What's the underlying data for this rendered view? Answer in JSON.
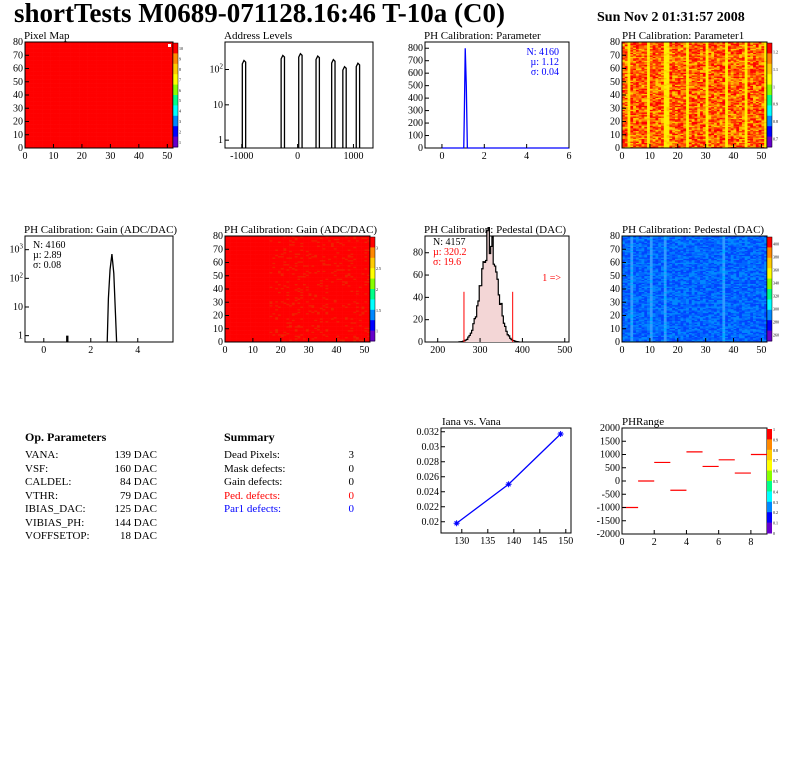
{
  "header": {
    "title": "shortTests M0689-071128.16:46 T-10a (C0)",
    "date": "Sun Nov  2 01:31:57 2008"
  },
  "colors": {
    "hist_black": "#000000",
    "hist_blue": "#0000ff",
    "map_red": "#ff0000",
    "text_red": "#ff0000",
    "text_blue": "#0000ff"
  },
  "parameters": {
    "title": "Op. Parameters",
    "items": [
      {
        "name": "VANA:",
        "value": "139 DAC"
      },
      {
        "name": "VSF:",
        "value": "160 DAC"
      },
      {
        "name": "CALDEL:",
        "value": "84 DAC"
      },
      {
        "name": "VTHR:",
        "value": "79 DAC"
      },
      {
        "name": "IBIAS_DAC:",
        "value": "125 DAC"
      },
      {
        "name": "VIBIAS_PH:",
        "value": "144 DAC"
      },
      {
        "name": "VOFFSETOP:",
        "value": "18 DAC"
      }
    ]
  },
  "summary": {
    "title": "Summary",
    "items": [
      {
        "name": "Dead Pixels:",
        "value": "3",
        "color": "#000000"
      },
      {
        "name": "Mask defects:",
        "value": "0",
        "color": "#000000"
      },
      {
        "name": "Gain defects:",
        "value": "0",
        "color": "#000000"
      },
      {
        "name": "Ped. defects:",
        "value": "0",
        "color": "#ff0000"
      },
      {
        "name": "Par1 defects:",
        "value": "0",
        "color": "#0000ff"
      }
    ]
  },
  "chart_data": [
    {
      "id": "pixel-map",
      "type": "heatmap",
      "title": "Pixel Map",
      "xlim": [
        0,
        52
      ],
      "ylim": [
        0,
        80
      ],
      "xticks": [
        "0",
        "10",
        "20",
        "30",
        "40",
        "50"
      ],
      "yticks": [
        "0",
        "10",
        "20",
        "30",
        "40",
        "50",
        "60",
        "70",
        "80"
      ],
      "zticks": [
        "1",
        "2",
        "3",
        "4",
        "5",
        "6",
        "7",
        "8",
        "9",
        "10"
      ],
      "fill": "uniform red (value 10)"
    },
    {
      "id": "address-levels",
      "type": "bar",
      "title": "Address Levels",
      "log_y": true,
      "xlim": [
        -1300,
        1350
      ],
      "xticks": [
        "-1000",
        "0",
        "1000"
      ],
      "yticks": [
        "1",
        "10",
        "10^2"
      ],
      "peaks": [
        {
          "x": -960,
          "y": 180
        },
        {
          "x": -265,
          "y": 250
        },
        {
          "x": 50,
          "y": 280
        },
        {
          "x": 360,
          "y": 240
        },
        {
          "x": 640,
          "y": 190
        },
        {
          "x": 840,
          "y": 120
        },
        {
          "x": 1080,
          "y": 150
        }
      ]
    },
    {
      "id": "ph-cal-parameter",
      "type": "bar",
      "title": "PH Calibration: Parameter",
      "xlim": [
        -0.8,
        6
      ],
      "ylim": [
        0,
        850
      ],
      "xticks": [
        "0",
        "2",
        "4",
        "6"
      ],
      "yticks": [
        "0",
        "100",
        "200",
        "300",
        "400",
        "500",
        "600",
        "700",
        "800"
      ],
      "stats": [
        "N: 4160",
        "µ: 1.12",
        "σ: 0.04"
      ],
      "peak": {
        "x": 1.12,
        "y": 800
      }
    },
    {
      "id": "ph-cal-parameter1",
      "type": "heatmap",
      "title": "PH Calibration: Parameter1",
      "xlim": [
        0,
        52
      ],
      "ylim": [
        0,
        80
      ],
      "xticks": [
        "0",
        "10",
        "20",
        "30",
        "40",
        "50"
      ],
      "yticks": [
        "0",
        "10",
        "20",
        "30",
        "40",
        "50",
        "60",
        "70",
        "80"
      ],
      "zticks": [
        "0.7",
        "0.8",
        "0.9",
        "1",
        "1.1",
        "1.2"
      ]
    },
    {
      "id": "ph-cal-gain",
      "type": "bar",
      "title": "PH Calibration: Gain (ADC/DAC)",
      "log_y": true,
      "xlim": [
        -0.8,
        5.5
      ],
      "xticks": [
        "0",
        "2",
        "4"
      ],
      "yticks": [
        "1",
        "10",
        "10^2",
        "10^3"
      ],
      "stats": [
        "N: 4160",
        "µ: 2.89",
        "σ: 0.08"
      ],
      "peak": {
        "x": 2.9,
        "y": 700
      }
    },
    {
      "id": "ph-cal-gain-map",
      "type": "heatmap",
      "title": "PH Calibration: Gain (ADC/DAC)",
      "xlim": [
        0,
        52
      ],
      "ylim": [
        0,
        80
      ],
      "xticks": [
        "0",
        "10",
        "20",
        "30",
        "40",
        "50"
      ],
      "yticks": [
        "0",
        "10",
        "20",
        "30",
        "40",
        "50",
        "60",
        "70",
        "80"
      ],
      "zticks": [
        "1",
        "1.5",
        "2",
        "2.5",
        "3"
      ]
    },
    {
      "id": "ph-cal-pedestal",
      "type": "bar",
      "title": "PH Calibration: Pedestal (DAC)",
      "xlim": [
        170,
        510
      ],
      "ylim": [
        0,
        95
      ],
      "xticks": [
        "200",
        "300",
        "400",
        "500"
      ],
      "yticks": [
        "0",
        "20",
        "40",
        "60",
        "80"
      ],
      "stats": [
        "N: 4157",
        "µ: 320.2",
        "σ: 19.6"
      ],
      "overflow_label": "1 =>",
      "peak": {
        "x": 320,
        "y": 90
      }
    },
    {
      "id": "ph-cal-pedestal-map",
      "type": "heatmap",
      "title": "PH Calibration: Pedestal (DAC)",
      "xlim": [
        0,
        52
      ],
      "ylim": [
        0,
        80
      ],
      "xticks": [
        "0",
        "10",
        "20",
        "30",
        "40",
        "50"
      ],
      "yticks": [
        "0",
        "10",
        "20",
        "30",
        "40",
        "50",
        "60",
        "70",
        "80"
      ],
      "zticks": [
        "260",
        "280",
        "300",
        "320",
        "340",
        "360",
        "380",
        "400"
      ]
    },
    {
      "id": "iana-vs-vana",
      "type": "line",
      "title": "Iana vs. Vana",
      "xlim": [
        126,
        151
      ],
      "ylim": [
        0.0185,
        0.0325
      ],
      "xticks": [
        "130",
        "135",
        "140",
        "145",
        "150"
      ],
      "yticks": [
        "0.02",
        "0.022",
        "0.024",
        "0.026",
        "0.028",
        "0.03",
        "0.032"
      ],
      "x": [
        129,
        139,
        149
      ],
      "y": [
        0.0198,
        0.025,
        0.0317
      ]
    },
    {
      "id": "ph-range",
      "type": "scatter",
      "title": "PHRange",
      "xlim": [
        0,
        9
      ],
      "ylim": [
        -2000,
        2000
      ],
      "xticks": [
        "0",
        "2",
        "4",
        "6",
        "8"
      ],
      "yticks": [
        "-2000",
        "-1500",
        "-1000",
        "-500",
        "0",
        "500",
        "1000",
        "1500",
        "2000"
      ],
      "zticks": [
        "0",
        "0.1",
        "0.2",
        "0.3",
        "0.4",
        "0.5",
        "0.6",
        "0.7",
        "0.8",
        "0.9",
        "1"
      ],
      "x": [
        0.5,
        1.5,
        2.5,
        3.5,
        4.5,
        5.5,
        6.5,
        7.5,
        8.5
      ],
      "y": [
        -1000,
        0,
        700,
        -350,
        1100,
        550,
        800,
        300,
        1000
      ]
    }
  ]
}
